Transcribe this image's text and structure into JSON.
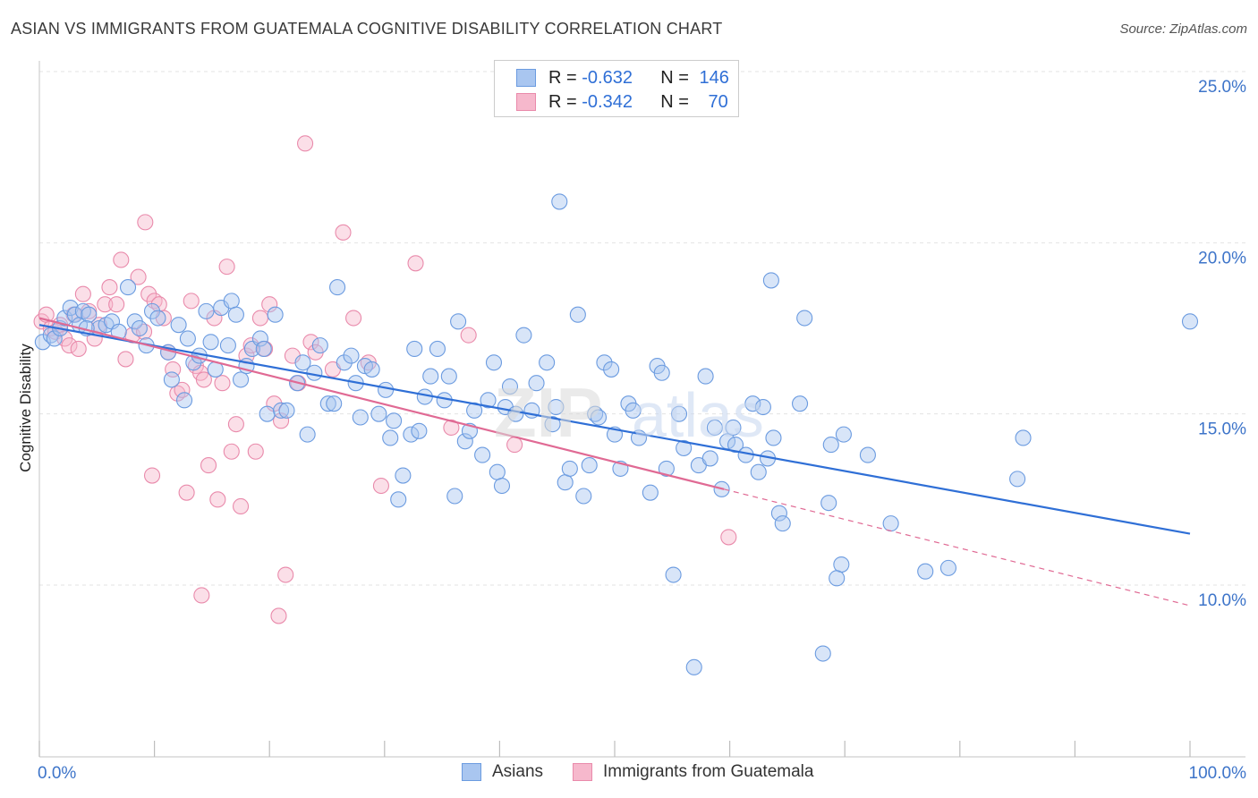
{
  "title": "ASIAN VS IMMIGRANTS FROM GUATEMALA COGNITIVE DISABILITY CORRELATION CHART",
  "source": "Source: ZipAtlas.com",
  "legend_top": {
    "rows": [
      {
        "r_label": "R =",
        "r_value": "-0.632",
        "n_label": "N =",
        "n_value": "146"
      },
      {
        "r_label": "R =",
        "r_value": "-0.342",
        "n_label": "N =",
        "n_value": "70"
      }
    ]
  },
  "bottom_legend": {
    "asians": "Asians",
    "guatemala": "Immigrants from Guatemala"
  },
  "colors": {
    "asian_fill": "#a9c6f0",
    "asian_stroke": "#6b9be0",
    "asian_line": "#2f6fd6",
    "guat_fill": "#f6b8cc",
    "guat_stroke": "#e98aab",
    "guat_line": "#e06a94",
    "tick_text": "#3d74c9",
    "grid": "#e3e3e3"
  },
  "chart_data": {
    "type": "scatter",
    "title": "ASIAN VS IMMIGRANTS FROM GUATEMALA COGNITIVE DISABILITY CORRELATION CHART",
    "xlabel": "",
    "ylabel": "Cognitive Disability",
    "xlim": [
      0,
      100
    ],
    "ylim": [
      5,
      25.5
    ],
    "x_tick_labels": [
      "0.0%",
      "100.0%"
    ],
    "y_ticks": [
      10,
      15,
      20,
      25
    ],
    "y_tick_labels": [
      "10.0%",
      "15.0%",
      "20.0%",
      "25.0%"
    ],
    "grid": true,
    "legend_placement": "top-center",
    "series": [
      {
        "name": "Asians",
        "trend": {
          "x": [
            0,
            100
          ],
          "y": [
            17.6,
            11.5
          ]
        },
        "points": [
          [
            0.3,
            17.1
          ],
          [
            1.0,
            17.3
          ],
          [
            1.3,
            17.2
          ],
          [
            1.8,
            17.5
          ],
          [
            2.2,
            17.8
          ],
          [
            2.7,
            18.1
          ],
          [
            3.1,
            17.9
          ],
          [
            3.5,
            17.6
          ],
          [
            3.8,
            18.0
          ],
          [
            4.3,
            17.9
          ],
          [
            5.2,
            17.5
          ],
          [
            5.8,
            17.6
          ],
          [
            6.3,
            17.7
          ],
          [
            6.9,
            17.4
          ],
          [
            7.7,
            18.7
          ],
          [
            8.3,
            17.7
          ],
          [
            8.7,
            17.5
          ],
          [
            9.8,
            18.0
          ],
          [
            10.3,
            17.8
          ],
          [
            9.3,
            17.0
          ],
          [
            11.2,
            16.8
          ],
          [
            11.5,
            16.0
          ],
          [
            12.1,
            17.6
          ],
          [
            12.6,
            15.4
          ],
          [
            12.9,
            17.2
          ],
          [
            13.4,
            16.5
          ],
          [
            13.9,
            16.7
          ],
          [
            14.5,
            18.0
          ],
          [
            14.9,
            17.1
          ],
          [
            15.3,
            16.3
          ],
          [
            15.8,
            18.1
          ],
          [
            16.4,
            17.0
          ],
          [
            16.7,
            18.3
          ],
          [
            17.1,
            17.9
          ],
          [
            17.5,
            16.0
          ],
          [
            18.0,
            16.4
          ],
          [
            18.5,
            16.9
          ],
          [
            19.2,
            17.2
          ],
          [
            19.5,
            16.9
          ],
          [
            19.8,
            15.0
          ],
          [
            20.5,
            17.9
          ],
          [
            21.0,
            15.1
          ],
          [
            21.5,
            15.1
          ],
          [
            22.4,
            15.9
          ],
          [
            22.9,
            16.5
          ],
          [
            23.3,
            14.4
          ],
          [
            23.9,
            16.2
          ],
          [
            24.4,
            17.0
          ],
          [
            25.1,
            15.3
          ],
          [
            25.6,
            15.3
          ],
          [
            25.9,
            18.7
          ],
          [
            26.5,
            16.5
          ],
          [
            27.1,
            16.7
          ],
          [
            27.5,
            15.9
          ],
          [
            27.9,
            14.9
          ],
          [
            28.3,
            16.4
          ],
          [
            28.9,
            16.3
          ],
          [
            29.5,
            15.0
          ],
          [
            30.1,
            15.7
          ],
          [
            30.5,
            14.3
          ],
          [
            30.8,
            14.8
          ],
          [
            31.6,
            13.2
          ],
          [
            31.2,
            12.5
          ],
          [
            32.3,
            14.4
          ],
          [
            32.6,
            16.9
          ],
          [
            33.0,
            14.5
          ],
          [
            33.5,
            15.5
          ],
          [
            34.0,
            16.1
          ],
          [
            34.6,
            16.9
          ],
          [
            35.2,
            15.4
          ],
          [
            35.6,
            16.1
          ],
          [
            36.1,
            12.6
          ],
          [
            36.4,
            17.7
          ],
          [
            37.0,
            14.2
          ],
          [
            37.4,
            14.5
          ],
          [
            37.8,
            15.1
          ],
          [
            38.5,
            13.8
          ],
          [
            39.0,
            15.4
          ],
          [
            39.5,
            16.5
          ],
          [
            39.8,
            13.3
          ],
          [
            40.2,
            12.9
          ],
          [
            40.5,
            15.2
          ],
          [
            40.9,
            15.8
          ],
          [
            41.4,
            15.0
          ],
          [
            42.1,
            17.3
          ],
          [
            42.8,
            15.1
          ],
          [
            43.2,
            15.9
          ],
          [
            44.1,
            16.5
          ],
          [
            44.6,
            14.7
          ],
          [
            44.9,
            15.2
          ],
          [
            45.2,
            21.2
          ],
          [
            45.7,
            13.0
          ],
          [
            46.1,
            13.4
          ],
          [
            46.8,
            17.9
          ],
          [
            47.3,
            12.6
          ],
          [
            47.8,
            13.5
          ],
          [
            48.3,
            15.0
          ],
          [
            48.6,
            14.9
          ],
          [
            49.1,
            16.5
          ],
          [
            49.7,
            16.3
          ],
          [
            50.0,
            14.4
          ],
          [
            50.5,
            13.4
          ],
          [
            51.2,
            15.3
          ],
          [
            51.6,
            15.1
          ],
          [
            52.1,
            14.3
          ],
          [
            53.1,
            12.7
          ],
          [
            53.7,
            16.4
          ],
          [
            54.1,
            16.2
          ],
          [
            54.5,
            13.4
          ],
          [
            55.1,
            10.3
          ],
          [
            55.6,
            15.0
          ],
          [
            56.0,
            14.0
          ],
          [
            56.9,
            7.6
          ],
          [
            57.3,
            13.5
          ],
          [
            57.9,
            16.1
          ],
          [
            58.3,
            13.7
          ],
          [
            58.7,
            14.6
          ],
          [
            59.3,
            12.8
          ],
          [
            59.8,
            14.2
          ],
          [
            60.3,
            14.6
          ],
          [
            60.5,
            14.1
          ],
          [
            61.4,
            13.8
          ],
          [
            62.0,
            15.3
          ],
          [
            62.5,
            13.3
          ],
          [
            62.9,
            15.2
          ],
          [
            63.3,
            13.7
          ],
          [
            63.6,
            18.9
          ],
          [
            63.8,
            14.3
          ],
          [
            64.3,
            12.1
          ],
          [
            64.6,
            11.8
          ],
          [
            66.1,
            15.3
          ],
          [
            66.5,
            17.8
          ],
          [
            68.6,
            12.4
          ],
          [
            68.8,
            14.1
          ],
          [
            69.7,
            10.6
          ],
          [
            69.3,
            10.2
          ],
          [
            68.1,
            8.0
          ],
          [
            69.9,
            14.4
          ],
          [
            72.0,
            13.8
          ],
          [
            74.0,
            11.8
          ],
          [
            77.0,
            10.4
          ],
          [
            79.0,
            10.5
          ],
          [
            85.0,
            13.1
          ],
          [
            85.5,
            14.3
          ],
          [
            100.0,
            17.7
          ],
          [
            4.1,
            17.5
          ]
        ]
      },
      {
        "name": "Immigrants from Guatemala",
        "trend": {
          "x": [
            0,
            59.5
          ],
          "y": [
            17.8,
            12.8
          ]
        },
        "trend_ext": {
          "x": [
            59.5,
            100
          ],
          "y": [
            12.8,
            9.4
          ]
        },
        "points": [
          [
            0.2,
            17.7
          ],
          [
            0.6,
            17.9
          ],
          [
            1.0,
            17.5
          ],
          [
            1.4,
            17.4
          ],
          [
            1.8,
            17.6
          ],
          [
            2.2,
            17.2
          ],
          [
            2.6,
            17.0
          ],
          [
            3.0,
            17.9
          ],
          [
            3.4,
            16.9
          ],
          [
            3.8,
            18.5
          ],
          [
            4.3,
            18.0
          ],
          [
            4.8,
            17.2
          ],
          [
            5.2,
            17.6
          ],
          [
            5.7,
            18.2
          ],
          [
            6.1,
            18.7
          ],
          [
            6.7,
            18.2
          ],
          [
            7.1,
            19.5
          ],
          [
            7.5,
            16.6
          ],
          [
            8.1,
            17.3
          ],
          [
            8.6,
            19.0
          ],
          [
            9.1,
            17.4
          ],
          [
            9.5,
            18.5
          ],
          [
            10.0,
            18.3
          ],
          [
            10.4,
            18.2
          ],
          [
            10.8,
            17.8
          ],
          [
            11.2,
            16.8
          ],
          [
            11.6,
            16.3
          ],
          [
            12.0,
            15.6
          ],
          [
            12.4,
            15.7
          ],
          [
            12.8,
            12.7
          ],
          [
            13.2,
            18.3
          ],
          [
            13.6,
            16.4
          ],
          [
            14.0,
            16.2
          ],
          [
            14.3,
            16.0
          ],
          [
            14.7,
            13.5
          ],
          [
            15.2,
            17.8
          ],
          [
            15.5,
            12.5
          ],
          [
            15.9,
            15.9
          ],
          [
            16.3,
            19.3
          ],
          [
            16.7,
            13.9
          ],
          [
            17.1,
            14.7
          ],
          [
            17.5,
            12.3
          ],
          [
            18.0,
            16.7
          ],
          [
            18.4,
            17.0
          ],
          [
            18.8,
            13.9
          ],
          [
            19.2,
            17.8
          ],
          [
            19.6,
            16.9
          ],
          [
            20.0,
            18.2
          ],
          [
            20.4,
            15.3
          ],
          [
            21.0,
            14.8
          ],
          [
            21.4,
            10.3
          ],
          [
            20.8,
            9.1
          ],
          [
            22.0,
            16.7
          ],
          [
            22.5,
            15.9
          ],
          [
            23.1,
            22.9
          ],
          [
            23.6,
            17.1
          ],
          [
            24.0,
            16.8
          ],
          [
            25.5,
            16.3
          ],
          [
            26.4,
            20.3
          ],
          [
            27.3,
            17.8
          ],
          [
            28.6,
            16.5
          ],
          [
            29.7,
            12.9
          ],
          [
            32.7,
            19.4
          ],
          [
            35.8,
            14.6
          ],
          [
            37.3,
            17.3
          ],
          [
            41.3,
            14.1
          ],
          [
            59.9,
            11.4
          ],
          [
            9.8,
            13.2
          ],
          [
            14.1,
            9.7
          ],
          [
            9.2,
            20.6
          ]
        ]
      }
    ]
  }
}
